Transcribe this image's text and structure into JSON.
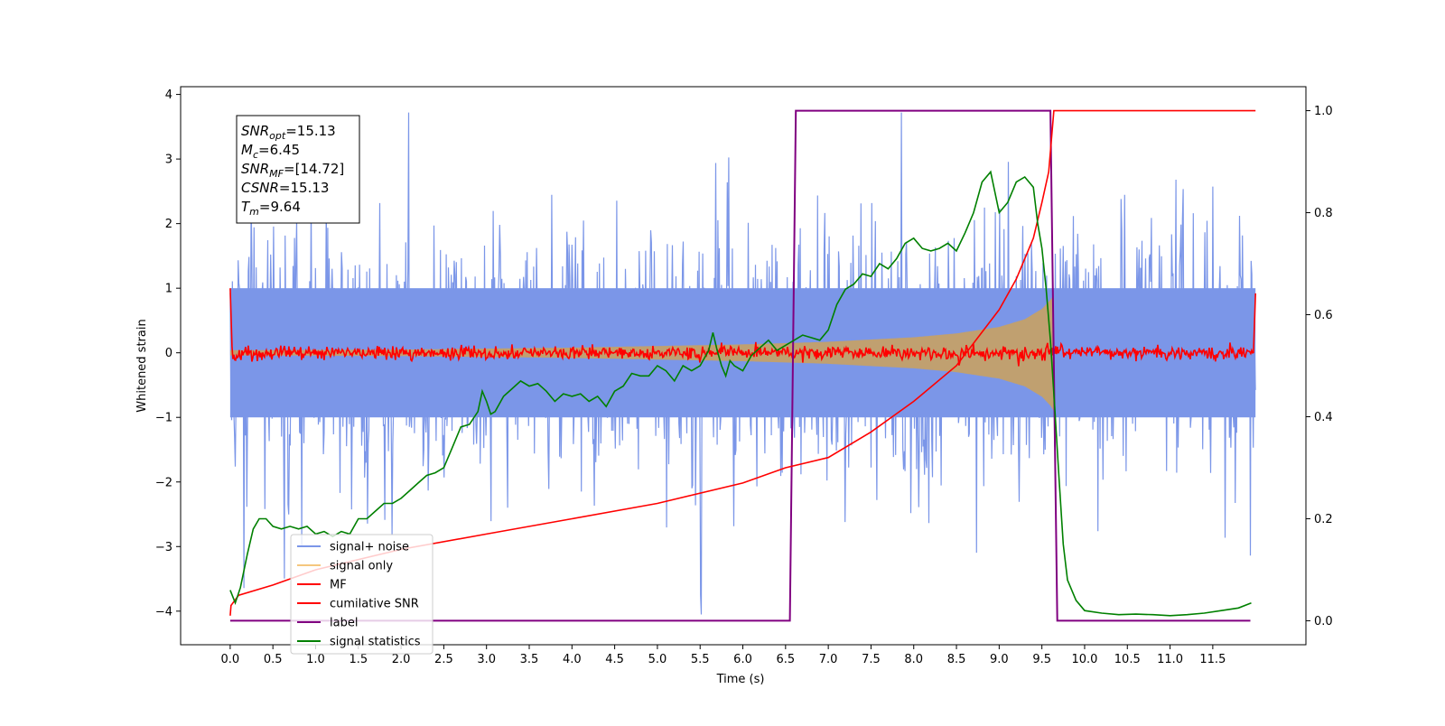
{
  "chart_data": {
    "type": "line",
    "title": "",
    "xlabel": "Time (s)",
    "ylabel": "Whitened strain",
    "xlim": [
      -0.58,
      12.59
    ],
    "ylim": [
      -4.52,
      4.12
    ],
    "y2lim": [
      -0.047,
      1.047
    ],
    "x_ticks": [
      0.0,
      0.5,
      1.0,
      1.5,
      2.0,
      2.5,
      3.0,
      3.5,
      4.0,
      4.5,
      5.0,
      5.5,
      6.0,
      6.5,
      7.0,
      7.5,
      8.0,
      8.5,
      9.0,
      9.5,
      10.0,
      10.5,
      11.0,
      11.5
    ],
    "x_tick_labels": [
      "0.0",
      "0.5",
      "1.0",
      "1.5",
      "2.0",
      "2.5",
      "3.0",
      "3.5",
      "4.0",
      "4.5",
      "5.0",
      "5.5",
      "6.0",
      "6.5",
      "7.0",
      "7.5",
      "8.0",
      "8.5",
      "9.0",
      "9.5",
      "10.0",
      "10.5",
      "11.0",
      "11.5"
    ],
    "y_ticks": [
      -4,
      -3,
      -2,
      -1,
      0,
      1,
      2,
      3,
      4
    ],
    "y_tick_labels": [
      "−4",
      "−3",
      "−2",
      "−1",
      "0",
      "1",
      "2",
      "3",
      "4"
    ],
    "y2_ticks": [
      0.0,
      0.2,
      0.4,
      0.6,
      0.8,
      1.0
    ],
    "y2_tick_labels": [
      "0.0",
      "0.2",
      "0.4",
      "0.6",
      "0.8",
      "1.0"
    ],
    "grid": false,
    "legend_position": "lower-left",
    "info_box": {
      "lines": [
        {
          "base": "SNR",
          "sub": "opt",
          "value": "=15.13"
        },
        {
          "base": "M",
          "sub": "c",
          "value": "=6.45"
        },
        {
          "base": "SNR",
          "sub": "MF",
          "value": "=[14.72]"
        },
        {
          "base": "CSNR",
          "sub": "",
          "value": "=15.13"
        },
        {
          "base": "T",
          "sub": "m",
          "value": "=9.64"
        }
      ]
    },
    "series": [
      {
        "name": "signal+ noise",
        "color": "#7b96e8",
        "axis": "left",
        "style": "noise-band",
        "x_range": [
          0.0,
          12.0
        ],
        "amplitude_std": 1.0,
        "y_min": -4.15,
        "y_max": 3.72
      },
      {
        "name": "signal only",
        "color": "#c0a070",
        "legend_color": "#f5c77e",
        "axis": "left",
        "style": "chirp-envelope",
        "x": [
          0.0,
          2.0,
          4.0,
          6.0,
          7.0,
          8.0,
          8.5,
          9.0,
          9.3,
          9.5,
          9.6,
          9.64
        ],
        "envelope": [
          0.04,
          0.05,
          0.08,
          0.13,
          0.17,
          0.24,
          0.3,
          0.4,
          0.52,
          0.68,
          0.82,
          0.9
        ]
      },
      {
        "name": "MF",
        "color": "#ff0000",
        "axis": "left",
        "style": "noisy-zero",
        "x_range": [
          0.0,
          12.0
        ],
        "spike_start": 1.0,
        "spike_end": 0.92,
        "noise_std": 0.05
      },
      {
        "name": "cumilative SNR",
        "color": "#ff0000",
        "axis": "right",
        "x": [
          0.0,
          0.01,
          0.1,
          0.5,
          1.0,
          2.0,
          3.0,
          4.0,
          5.0,
          6.0,
          6.5,
          7.0,
          7.5,
          8.0,
          8.5,
          9.0,
          9.2,
          9.4,
          9.5,
          9.58,
          9.64,
          9.7,
          10.0,
          11.0,
          12.0
        ],
        "y": [
          0.01,
          0.03,
          0.05,
          0.07,
          0.1,
          0.14,
          0.17,
          0.2,
          0.23,
          0.27,
          0.3,
          0.32,
          0.37,
          0.43,
          0.5,
          0.61,
          0.67,
          0.75,
          0.82,
          0.88,
          1.0,
          1.0,
          1.0,
          1.0,
          1.0
        ]
      },
      {
        "name": "label",
        "color": "#800080",
        "axis": "right",
        "x": [
          0.0,
          6.55,
          6.62,
          9.6,
          9.68,
          11.94
        ],
        "y": [
          0.0,
          0.0,
          1.0,
          1.0,
          0.0,
          0.0
        ]
      },
      {
        "name": "signal statistics",
        "color": "#008000",
        "axis": "right",
        "x": [
          0.0,
          0.06,
          0.12,
          0.2,
          0.27,
          0.34,
          0.42,
          0.5,
          0.6,
          0.7,
          0.8,
          0.9,
          1.0,
          1.1,
          1.2,
          1.3,
          1.4,
          1.5,
          1.6,
          1.7,
          1.8,
          1.9,
          2.0,
          2.1,
          2.2,
          2.3,
          2.4,
          2.5,
          2.6,
          2.7,
          2.8,
          2.9,
          2.95,
          3.0,
          3.05,
          3.1,
          3.2,
          3.3,
          3.4,
          3.5,
          3.6,
          3.7,
          3.8,
          3.9,
          4.0,
          4.1,
          4.2,
          4.3,
          4.4,
          4.5,
          4.6,
          4.7,
          4.8,
          4.9,
          5.0,
          5.1,
          5.2,
          5.3,
          5.4,
          5.5,
          5.6,
          5.65,
          5.7,
          5.75,
          5.8,
          5.85,
          5.9,
          6.0,
          6.1,
          6.2,
          6.3,
          6.4,
          6.5,
          6.6,
          6.7,
          6.8,
          6.9,
          7.0,
          7.1,
          7.2,
          7.3,
          7.4,
          7.5,
          7.6,
          7.7,
          7.8,
          7.9,
          8.0,
          8.1,
          8.2,
          8.3,
          8.4,
          8.5,
          8.6,
          8.7,
          8.8,
          8.9,
          9.0,
          9.1,
          9.2,
          9.3,
          9.4,
          9.45,
          9.5,
          9.55,
          9.6,
          9.65,
          9.7,
          9.75,
          9.8,
          9.9,
          10.0,
          10.2,
          10.4,
          10.6,
          10.8,
          11.0,
          11.2,
          11.4,
          11.6,
          11.8,
          11.95
        ],
        "y": [
          0.06,
          0.035,
          0.065,
          0.13,
          0.18,
          0.2,
          0.2,
          0.185,
          0.18,
          0.185,
          0.18,
          0.185,
          0.17,
          0.175,
          0.165,
          0.175,
          0.17,
          0.2,
          0.2,
          0.215,
          0.23,
          0.23,
          0.24,
          0.255,
          0.27,
          0.285,
          0.29,
          0.3,
          0.34,
          0.38,
          0.385,
          0.41,
          0.45,
          0.43,
          0.405,
          0.41,
          0.44,
          0.455,
          0.47,
          0.46,
          0.465,
          0.45,
          0.43,
          0.445,
          0.44,
          0.445,
          0.43,
          0.44,
          0.42,
          0.45,
          0.46,
          0.485,
          0.48,
          0.48,
          0.5,
          0.49,
          0.47,
          0.5,
          0.49,
          0.5,
          0.53,
          0.565,
          0.53,
          0.5,
          0.48,
          0.51,
          0.5,
          0.49,
          0.52,
          0.535,
          0.55,
          0.53,
          0.54,
          0.55,
          0.56,
          0.555,
          0.55,
          0.57,
          0.62,
          0.65,
          0.66,
          0.68,
          0.675,
          0.7,
          0.69,
          0.71,
          0.74,
          0.75,
          0.73,
          0.725,
          0.73,
          0.74,
          0.725,
          0.76,
          0.8,
          0.86,
          0.88,
          0.8,
          0.82,
          0.86,
          0.87,
          0.85,
          0.78,
          0.73,
          0.65,
          0.55,
          0.42,
          0.28,
          0.15,
          0.08,
          0.04,
          0.02,
          0.015,
          0.012,
          0.013,
          0.012,
          0.01,
          0.012,
          0.015,
          0.02,
          0.025,
          0.035
        ]
      }
    ]
  }
}
